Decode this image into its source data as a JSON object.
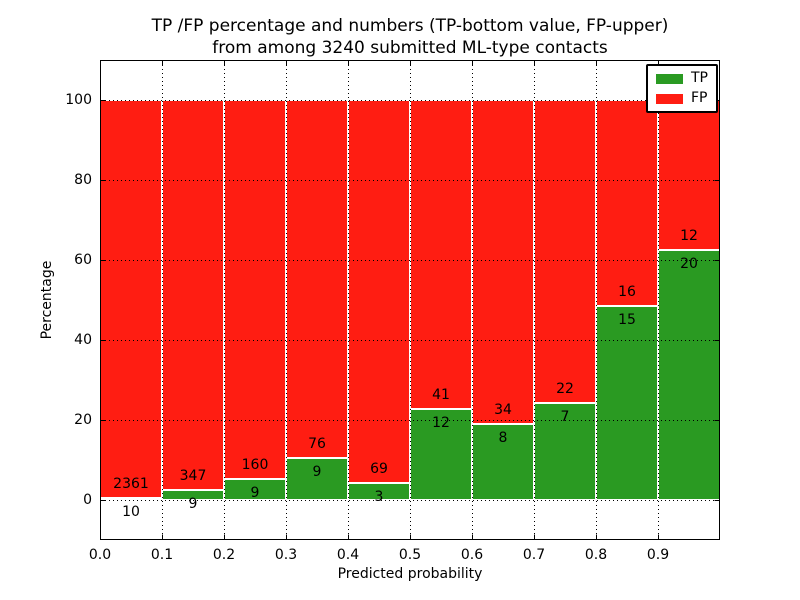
{
  "figure": {
    "title_line1": "TP /FP percentage and numbers (TP-bottom value, FP-upper)",
    "title_line2": "from among 3240 submitted ML-type contacts",
    "xlabel": "Predicted probability",
    "ylabel": "Percentage",
    "background_color": "#ffffff"
  },
  "axes": {
    "x_ticks": [
      "0.0",
      "0.1",
      "0.2",
      "0.3",
      "0.4",
      "0.5",
      "0.6",
      "0.7",
      "0.8",
      "0.9"
    ],
    "y_ticks": [
      "0",
      "20",
      "40",
      "60",
      "80",
      "100"
    ]
  },
  "legend": {
    "position": "upper right",
    "items": [
      {
        "label": "TP",
        "color": "#2a9a22"
      },
      {
        "label": "FP",
        "color": "#ff1d12"
      }
    ]
  },
  "chart_data": {
    "type": "bar",
    "stacked": true,
    "percent_normalized": true,
    "title": "TP /FP percentage and numbers (TP-bottom value, FP-upper) from among 3240 submitted ML-type contacts",
    "xlabel": "Predicted probability",
    "ylabel": "Percentage",
    "xlim": [
      0.0,
      1.0
    ],
    "ylim": [
      -10,
      110
    ],
    "grid": true,
    "grid_style": "dotted-black",
    "bar_edge_color": "#ffffff",
    "legend_position": "upper right",
    "bin_width": 0.1,
    "categories": [
      "0.0-0.1",
      "0.1-0.2",
      "0.2-0.3",
      "0.3-0.4",
      "0.4-0.5",
      "0.5-0.6",
      "0.6-0.7",
      "0.7-0.8",
      "0.8-0.9",
      "0.9-1.0"
    ],
    "series": [
      {
        "name": "TP",
        "color": "#2a9a22",
        "stack_order": "bottom",
        "counts": [
          10,
          9,
          9,
          9,
          3,
          12,
          8,
          7,
          15,
          20
        ],
        "percent": [
          0.42,
          2.53,
          5.33,
          10.59,
          4.17,
          22.64,
          19.05,
          24.14,
          48.39,
          62.5
        ]
      },
      {
        "name": "FP",
        "color": "#ff1d12",
        "stack_order": "top",
        "counts": [
          2361,
          347,
          160,
          76,
          69,
          41,
          34,
          22,
          16,
          12
        ],
        "percent": [
          99.58,
          97.47,
          94.67,
          89.41,
          95.83,
          77.36,
          80.95,
          75.86,
          51.61,
          37.5
        ]
      }
    ],
    "total_contacts": 3240
  }
}
